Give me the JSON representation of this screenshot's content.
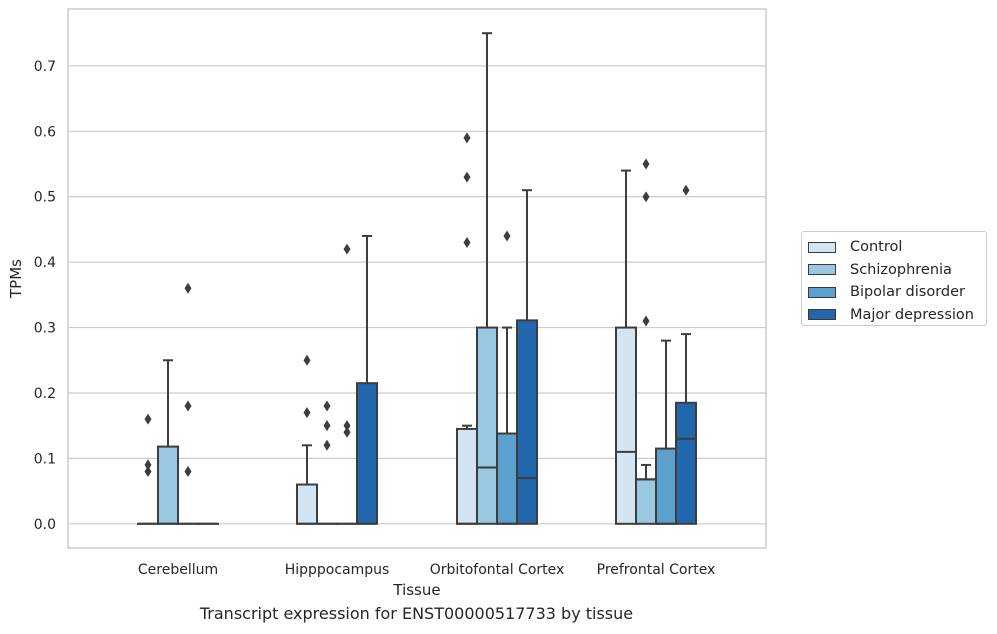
{
  "chart_data": {
    "type": "boxplot",
    "title": "",
    "caption": "Transcript expression for ENST00000517733 by tissue",
    "xlabel": "Tissue",
    "ylabel": "TPMs",
    "ylim": [
      -0.037,
      0.787
    ],
    "yticks": [
      0.0,
      0.1,
      0.2,
      0.3,
      0.4,
      0.5,
      0.6,
      0.7
    ],
    "ytick_labels": [
      "0.0",
      "0.1",
      "0.2",
      "0.3",
      "0.4",
      "0.5",
      "0.6",
      "0.7"
    ],
    "grid": "horizontal",
    "legend_position": "right",
    "categories": [
      "Cerebellum",
      "Hipppocampus",
      "Orbitofontal Cortex",
      "Prefrontal Cortex"
    ],
    "series": [
      {
        "name": "Control",
        "color": "#d3e4f3",
        "boxes": [
          {
            "q1": 0.0,
            "median": 0.0,
            "q3": 0.0,
            "whisker_low": 0.0,
            "whisker_high": 0.0,
            "outliers": [
              0.16,
              0.09,
              0.08
            ]
          },
          {
            "q1": 0.0,
            "median": 0.0,
            "q3": 0.06,
            "whisker_low": 0.0,
            "whisker_high": 0.12,
            "outliers": [
              0.25,
              0.17
            ]
          },
          {
            "q1": 0.0,
            "median": 0.0,
            "q3": 0.145,
            "whisker_low": 0.0,
            "whisker_high": 0.15,
            "outliers": [
              0.59,
              0.53,
              0.43
            ]
          },
          {
            "q1": 0.0,
            "median": 0.11,
            "q3": 0.3,
            "whisker_low": 0.0,
            "whisker_high": 0.54,
            "outliers": []
          }
        ]
      },
      {
        "name": "Schizophrenia",
        "color": "#9ac8e0",
        "boxes": [
          {
            "q1": 0.0,
            "median": 0.0,
            "q3": 0.118,
            "whisker_low": 0.0,
            "whisker_high": 0.25,
            "outliers": []
          },
          {
            "q1": 0.0,
            "median": 0.0,
            "q3": 0.0,
            "whisker_low": 0.0,
            "whisker_high": 0.0,
            "outliers": [
              0.18,
              0.15,
              0.12
            ]
          },
          {
            "q1": 0.0,
            "median": 0.086,
            "q3": 0.3,
            "whisker_low": 0.0,
            "whisker_high": 0.75,
            "outliers": []
          },
          {
            "q1": 0.0,
            "median": 0.068,
            "q3": 0.068,
            "whisker_low": 0.0,
            "whisker_high": 0.09,
            "outliers": [
              0.55,
              0.5,
              0.31
            ]
          }
        ]
      },
      {
        "name": "Bipolar disorder",
        "color": "#5ba0cf",
        "boxes": [
          {
            "q1": 0.0,
            "median": 0.0,
            "q3": 0.0,
            "whisker_low": 0.0,
            "whisker_high": 0.0,
            "outliers": [
              0.36,
              0.18,
              0.08
            ]
          },
          {
            "q1": 0.0,
            "median": 0.0,
            "q3": 0.0,
            "whisker_low": 0.0,
            "whisker_high": 0.0,
            "outliers": [
              0.42,
              0.15,
              0.14
            ]
          },
          {
            "q1": 0.0,
            "median": 0.0,
            "q3": 0.138,
            "whisker_low": 0.0,
            "whisker_high": 0.3,
            "outliers": [
              0.44
            ]
          },
          {
            "q1": 0.0,
            "median": 0.0,
            "q3": 0.115,
            "whisker_low": 0.0,
            "whisker_high": 0.28,
            "outliers": []
          }
        ]
      },
      {
        "name": "Major depression",
        "color": "#2267ab",
        "boxes": [
          {
            "q1": 0.0,
            "median": 0.0,
            "q3": 0.0,
            "whisker_low": 0.0,
            "whisker_high": 0.0,
            "outliers": []
          },
          {
            "q1": 0.0,
            "median": 0.0,
            "q3": 0.215,
            "whisker_low": 0.0,
            "whisker_high": 0.44,
            "outliers": []
          },
          {
            "q1": 0.0,
            "median": 0.07,
            "q3": 0.311,
            "whisker_low": 0.0,
            "whisker_high": 0.51,
            "outliers": []
          },
          {
            "q1": 0.0,
            "median": 0.13,
            "q3": 0.185,
            "whisker_low": 0.0,
            "whisker_high": 0.29,
            "outliers": [
              0.51
            ]
          }
        ]
      }
    ]
  }
}
